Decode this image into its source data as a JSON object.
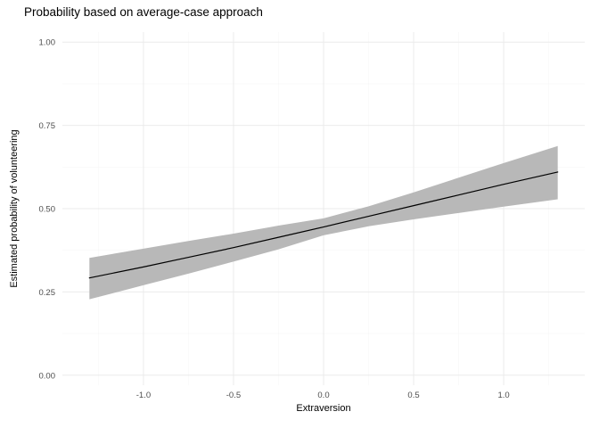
{
  "chart_data": {
    "type": "line",
    "title": "Probability based on average-case approach",
    "xlabel": "Extraversion",
    "ylabel": "Estimated probability of volunteering",
    "xlim": [
      -1.45,
      1.45
    ],
    "ylim": [
      -0.03,
      1.03
    ],
    "x_ticks": [
      {
        "v": -1.0,
        "label": "-1.0"
      },
      {
        "v": -0.5,
        "label": "-0.5"
      },
      {
        "v": 0.0,
        "label": "0.0"
      },
      {
        "v": 0.5,
        "label": "0.5"
      },
      {
        "v": 1.0,
        "label": "1.0"
      }
    ],
    "y_ticks": [
      {
        "v": 0.0,
        "label": "0.00"
      },
      {
        "v": 0.25,
        "label": "0.25"
      },
      {
        "v": 0.5,
        "label": "0.50"
      },
      {
        "v": 0.75,
        "label": "0.75"
      },
      {
        "v": 1.0,
        "label": "1.00"
      }
    ],
    "x_minor": [
      -1.25,
      -0.75,
      -0.25,
      0.25,
      0.75,
      1.25
    ],
    "y_minor": [
      0.125,
      0.375,
      0.625,
      0.875
    ],
    "grid": true,
    "legend": "none",
    "series": [
      {
        "name": "Estimated probability of volunteering (fitted line with confidence ribbon)",
        "points": [
          {
            "x": -1.3,
            "y": 0.292,
            "ymin": 0.228,
            "ymax": 0.352
          },
          {
            "x": -1.0,
            "y": 0.325,
            "ymin": 0.27,
            "ymax": 0.38
          },
          {
            "x": -0.75,
            "y": 0.354,
            "ymin": 0.305,
            "ymax": 0.403
          },
          {
            "x": -0.5,
            "y": 0.383,
            "ymin": 0.341,
            "ymax": 0.425
          },
          {
            "x": -0.25,
            "y": 0.414,
            "ymin": 0.378,
            "ymax": 0.449
          },
          {
            "x": 0.0,
            "y": 0.445,
            "ymin": 0.42,
            "ymax": 0.471
          },
          {
            "x": 0.25,
            "y": 0.477,
            "ymin": 0.447,
            "ymax": 0.507
          },
          {
            "x": 0.5,
            "y": 0.509,
            "ymin": 0.468,
            "ymax": 0.549
          },
          {
            "x": 0.75,
            "y": 0.541,
            "ymin": 0.487,
            "ymax": 0.593
          },
          {
            "x": 1.0,
            "y": 0.573,
            "ymin": 0.506,
            "ymax": 0.637
          },
          {
            "x": 1.3,
            "y": 0.61,
            "ymin": 0.528,
            "ymax": 0.688
          }
        ]
      }
    ],
    "colors": {
      "line": "#000000",
      "ribbon": "#b8b8b8",
      "grid_major": "#ebebeb",
      "grid_minor": "#f6f6f6",
      "tick_text": "#4d4d4d",
      "background": "#ffffff"
    }
  }
}
